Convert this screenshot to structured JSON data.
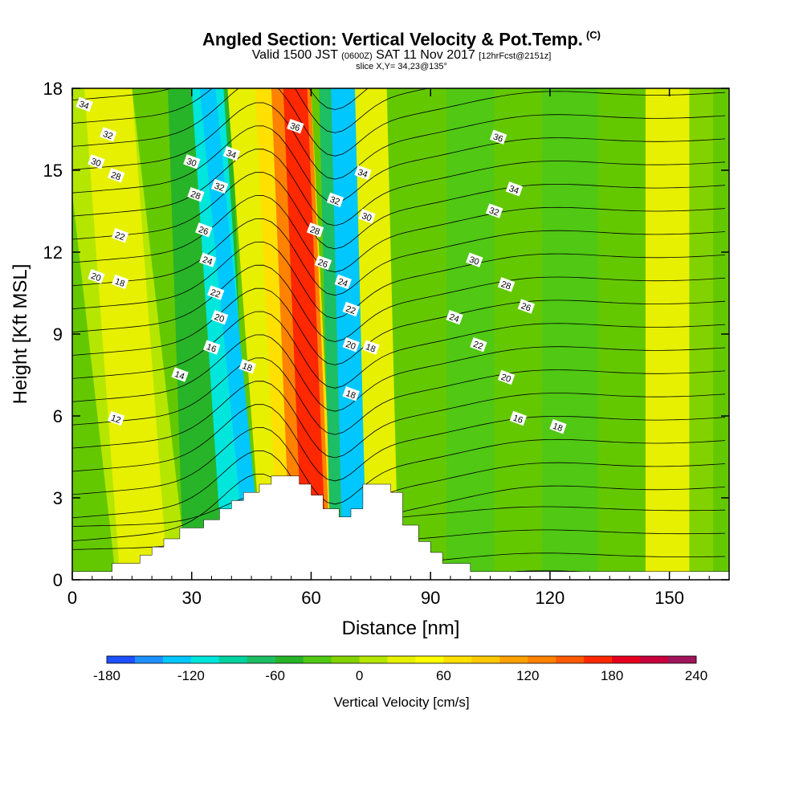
{
  "chart_data": {
    "type": "heatmap",
    "title": "Angled Section: Vertical Velocity & Pot.Temp.",
    "title_tag": "(C)",
    "subtitle_a": "Valid 1500 JST",
    "subtitle_b": "(0600Z)",
    "subtitle_c": "SAT 11 Nov 2017",
    "subtitle_d": "[12hrFcst@2151z]",
    "slice_label": "slice X,Y= 34,23@135°",
    "xlabel": "Distance [nm]",
    "ylabel": "Height [Kft MSL]",
    "xlim": [
      0,
      165
    ],
    "ylim": [
      0,
      18
    ],
    "x_ticks": [
      0,
      30,
      60,
      90,
      120,
      150
    ],
    "y_ticks": [
      0,
      3,
      6,
      9,
      12,
      15,
      18
    ],
    "colorbar": {
      "label": "Vertical Velocity [cm/s]",
      "min": -180,
      "max": 240,
      "step": 20,
      "ticks": [
        -180,
        -120,
        -60,
        0,
        60,
        120,
        180,
        240
      ],
      "colors": [
        "#0000ff",
        "#1e50ff",
        "#1e90ff",
        "#00c8ff",
        "#00e6dc",
        "#00d2a0",
        "#1ebe64",
        "#28b428",
        "#50c814",
        "#82d200",
        "#b4e600",
        "#e6f000",
        "#ffff00",
        "#ffe000",
        "#ffc800",
        "#ffa000",
        "#ff8200",
        "#ff5a00",
        "#ff2800",
        "#e6001e",
        "#c8003c",
        "#a0145a",
        "#781e78"
      ]
    },
    "theta_contour_labels": [
      "12",
      "14",
      "16",
      "18",
      "20",
      "22",
      "24",
      "26",
      "28",
      "30",
      "32",
      "34",
      "36"
    ],
    "terrain_profile": [
      [
        0,
        0.3
      ],
      [
        10,
        0.3
      ],
      [
        10,
        0.6
      ],
      [
        17,
        0.6
      ],
      [
        17,
        0.9
      ],
      [
        20,
        0.9
      ],
      [
        20,
        1.2
      ],
      [
        23,
        1.2
      ],
      [
        23,
        1.5
      ],
      [
        27,
        1.5
      ],
      [
        27,
        1.9
      ],
      [
        33,
        1.9
      ],
      [
        33,
        2.2
      ],
      [
        37,
        2.2
      ],
      [
        37,
        2.6
      ],
      [
        40,
        2.6
      ],
      [
        40,
        2.9
      ],
      [
        43,
        2.9
      ],
      [
        43,
        3.2
      ],
      [
        47,
        3.2
      ],
      [
        47,
        3.5
      ],
      [
        50,
        3.5
      ],
      [
        50,
        3.8
      ],
      [
        57,
        3.8
      ],
      [
        57,
        3.5
      ],
      [
        60,
        3.5
      ],
      [
        60,
        3.1
      ],
      [
        63,
        3.1
      ],
      [
        63,
        2.6
      ],
      [
        67,
        2.6
      ],
      [
        67,
        2.3
      ],
      [
        70,
        2.3
      ],
      [
        70,
        2.6
      ],
      [
        73,
        2.6
      ],
      [
        73,
        3.5
      ],
      [
        80,
        3.5
      ],
      [
        80,
        3.2
      ],
      [
        83,
        3.2
      ],
      [
        83,
        2.0
      ],
      [
        87,
        2.0
      ],
      [
        87,
        1.4
      ],
      [
        90,
        1.4
      ],
      [
        90,
        1.0
      ],
      [
        93,
        1.0
      ],
      [
        93,
        0.6
      ],
      [
        100,
        0.6
      ],
      [
        100,
        0.3
      ],
      [
        165,
        0.3
      ]
    ]
  }
}
